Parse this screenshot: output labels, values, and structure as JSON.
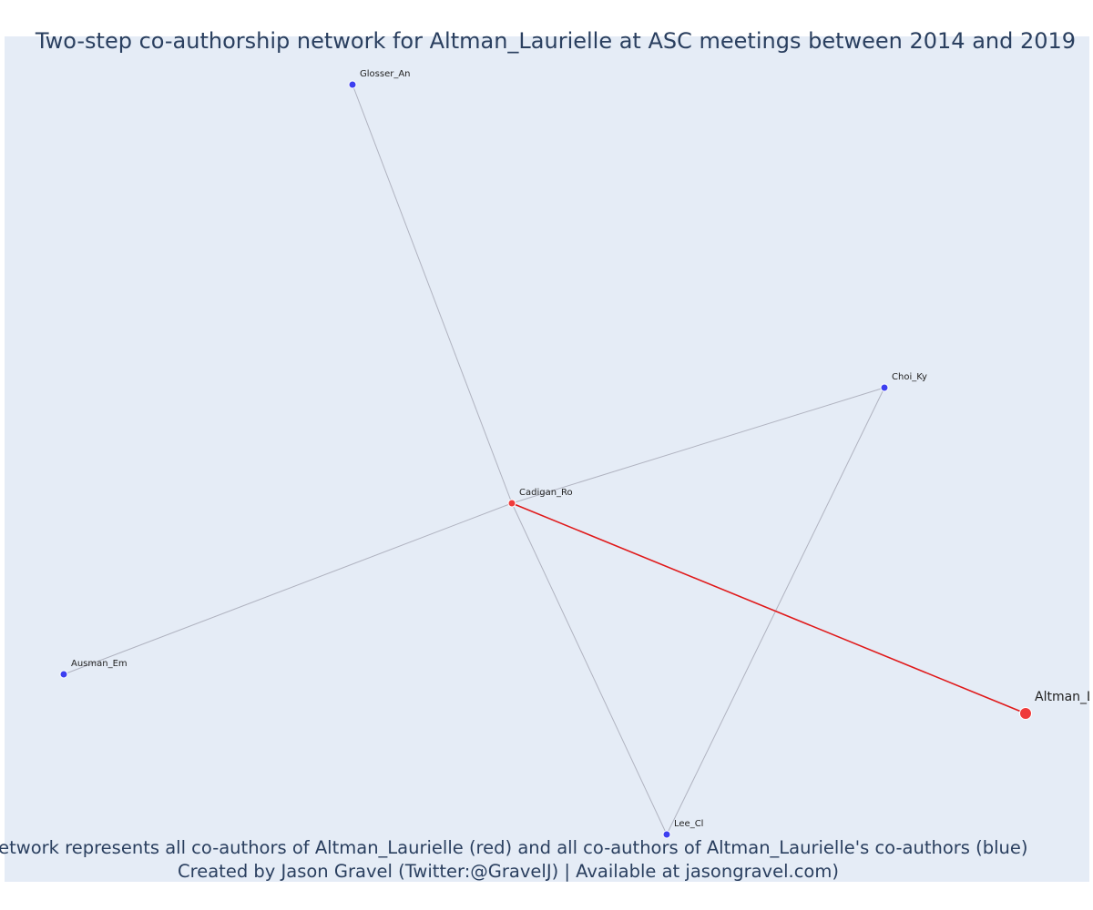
{
  "figure": {
    "title": "Two-step co-authorship network for Altman_Laurielle at ASC meetings between 2014 and 2019",
    "caption_line1": "Network represents all co-authors of Altman_Laurielle (red) and all co-authors of Altman_Laurielle's co-authors (blue)",
    "caption_line2": "Created by Jason Gravel (Twitter:@GravelJ) | Available at jasongravel.com)",
    "colors": {
      "background": "#e5ecf6",
      "red_node": "#ef3b3b",
      "blue_node": "#3d3ff0",
      "red_edge": "#e0191a",
      "grey_edge": "#b0b3c0",
      "text": "#2a3f5f"
    }
  },
  "network": {
    "nodes": [
      {
        "id": "Altman_Laurielle",
        "label": "Altman_Laurielle",
        "group": "focal"
      },
      {
        "id": "Cadigan_Ro",
        "label": "Cadigan_Ro",
        "group": "red"
      },
      {
        "id": "Glosser_An",
        "label": "Glosser_An",
        "group": "blue"
      },
      {
        "id": "Choi_Ky",
        "label": "Choi_Ky",
        "group": "blue"
      },
      {
        "id": "Ausman_Em",
        "label": "Ausman_Em",
        "group": "blue"
      },
      {
        "id": "Lee_Cl",
        "label": "Lee_Cl",
        "group": "blue"
      }
    ],
    "edges": [
      {
        "source": "Cadigan_Ro",
        "target": "Glosser_An",
        "type": "grey"
      },
      {
        "source": "Cadigan_Ro",
        "target": "Choi_Ky",
        "type": "grey"
      },
      {
        "source": "Cadigan_Ro",
        "target": "Ausman_Em",
        "type": "grey"
      },
      {
        "source": "Cadigan_Ro",
        "target": "Lee_Cl",
        "type": "grey"
      },
      {
        "source": "Choi_Ky",
        "target": "Lee_Cl",
        "type": "grey"
      },
      {
        "source": "Cadigan_Ro",
        "target": "Altman_Laurielle",
        "type": "red"
      }
    ]
  }
}
